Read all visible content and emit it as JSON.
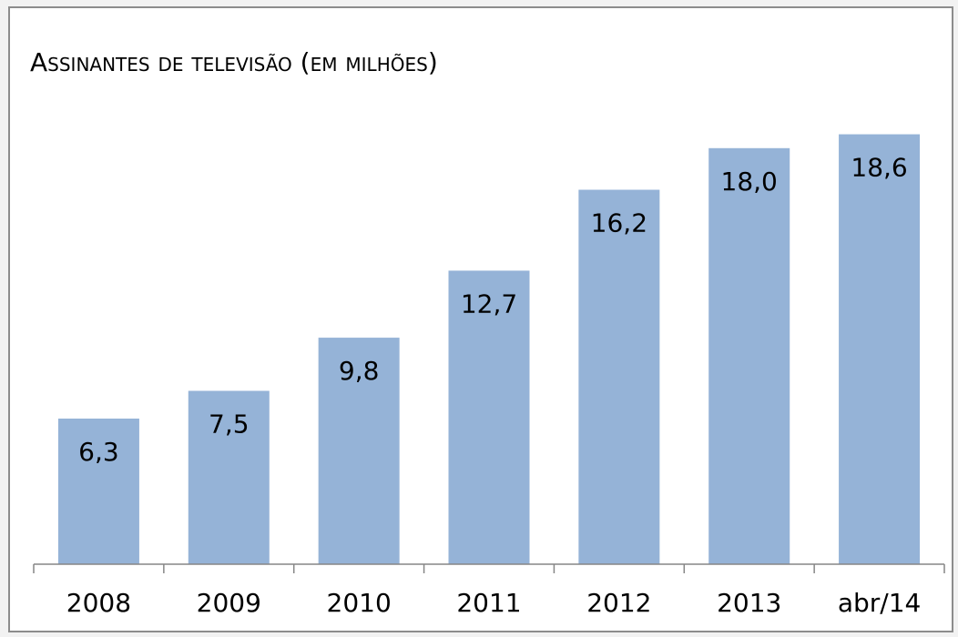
{
  "chart_data": {
    "type": "bar",
    "title": "Assinantes de televisão (em milhões)",
    "categories": [
      "2008",
      "2009",
      "2010",
      "2011",
      "2012",
      "2013",
      "abr/14"
    ],
    "values": [
      6.3,
      7.5,
      9.8,
      12.7,
      16.2,
      18.0,
      18.6
    ],
    "value_labels": [
      "6,3",
      "7,5",
      "9,8",
      "12,7",
      "16,2",
      "18,0",
      "18,6"
    ],
    "color": "#95b3d7",
    "ylim": [
      0,
      20
    ]
  }
}
